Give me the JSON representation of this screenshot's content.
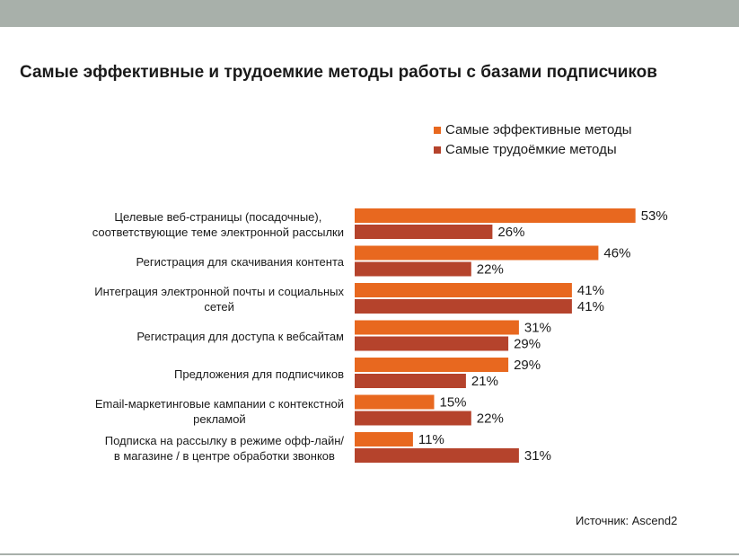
{
  "chart_data": {
    "type": "bar",
    "orientation": "horizontal",
    "title": "Самые эффективные и трудоемкие методы работы с базами подписчиков",
    "categories": [
      "Целевые веб-страницы (посадочные),\nсоответствующие теме электронной рассылки",
      "Регистрация для скачивания контента",
      "Интеграция электронной почты и социальных\nсетей",
      "Регистрация для доступа к вебсайтам",
      "Предложения для подписчиков",
      "Email-маркетинговые кампании с контекстной\nрекламой",
      "Подписка на рассылку в режиме офф-лайн/\nв магазине / в центре обработки звонков"
    ],
    "series": [
      {
        "name": "Самые эффективные методы",
        "color": "#e8681f",
        "values": [
          53,
          46,
          41,
          31,
          29,
          15,
          11
        ],
        "value_labels": [
          "53%",
          "46%",
          "41%",
          "31%",
          "29%",
          "15%",
          "11%"
        ]
      },
      {
        "name": "Самые трудоёмкие методы",
        "color": "#b5432c",
        "values": [
          26,
          22,
          41,
          29,
          21,
          22,
          31
        ],
        "value_labels": [
          "26%",
          "22%",
          "41%",
          "29%",
          "21%",
          "22%",
          "31%"
        ]
      }
    ],
    "source": "Источник: Ascend2"
  }
}
